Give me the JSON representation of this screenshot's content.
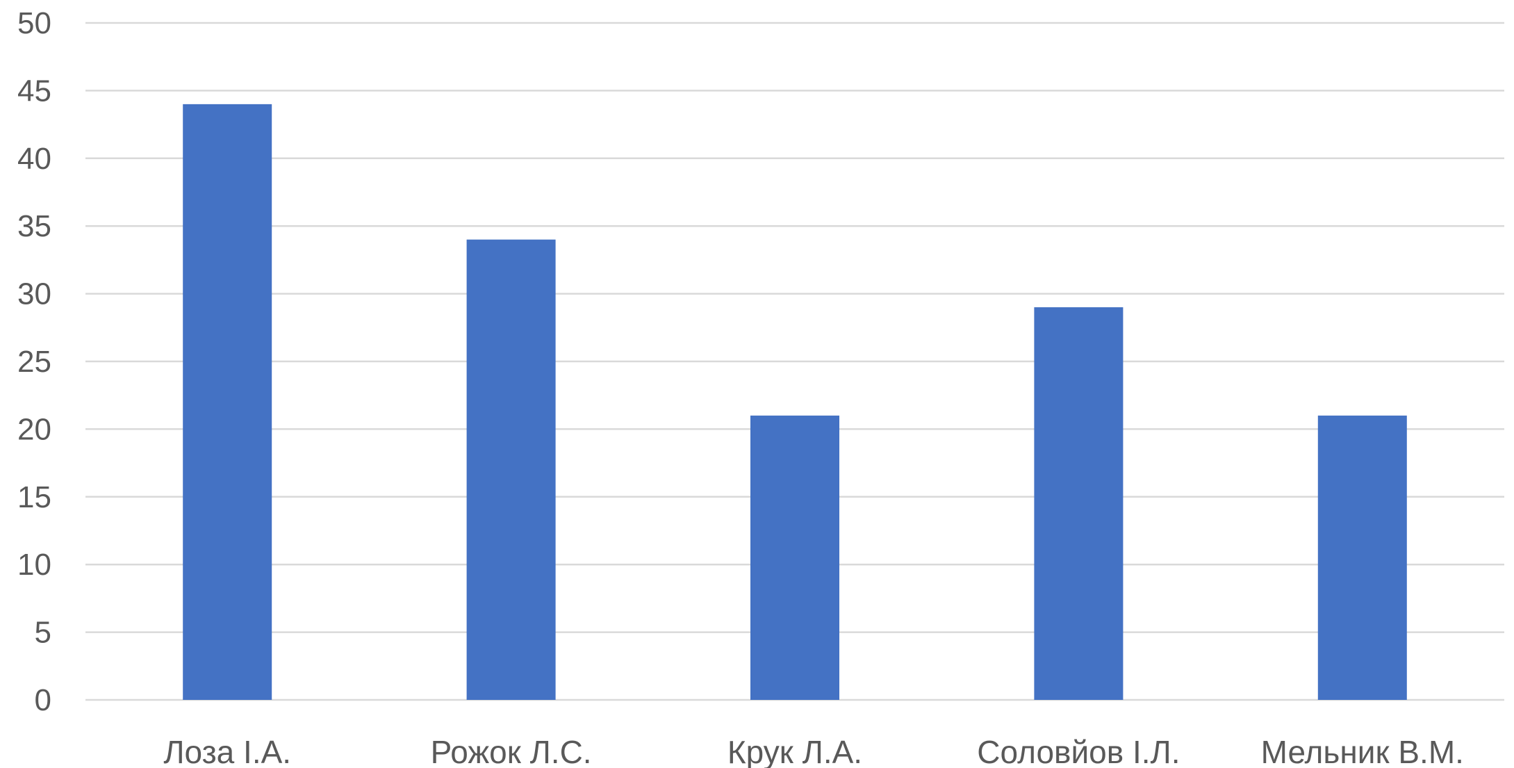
{
  "chart_data": {
    "type": "bar",
    "title": "",
    "xlabel": "",
    "ylabel": "",
    "categories": [
      "Лоза І.А.",
      "Рожок Л.С.",
      "Крук Л.А.",
      "Соловйов І.Л.",
      "Мельник В.М."
    ],
    "series": [
      {
        "values": [
          44,
          34,
          21,
          29,
          21
        ],
        "color": "#4472c4"
      }
    ],
    "ylim": [
      0,
      50
    ],
    "yticks": [
      0,
      5,
      10,
      15,
      20,
      25,
      30,
      35,
      40,
      45,
      50
    ],
    "grid": true,
    "legend": "none"
  }
}
